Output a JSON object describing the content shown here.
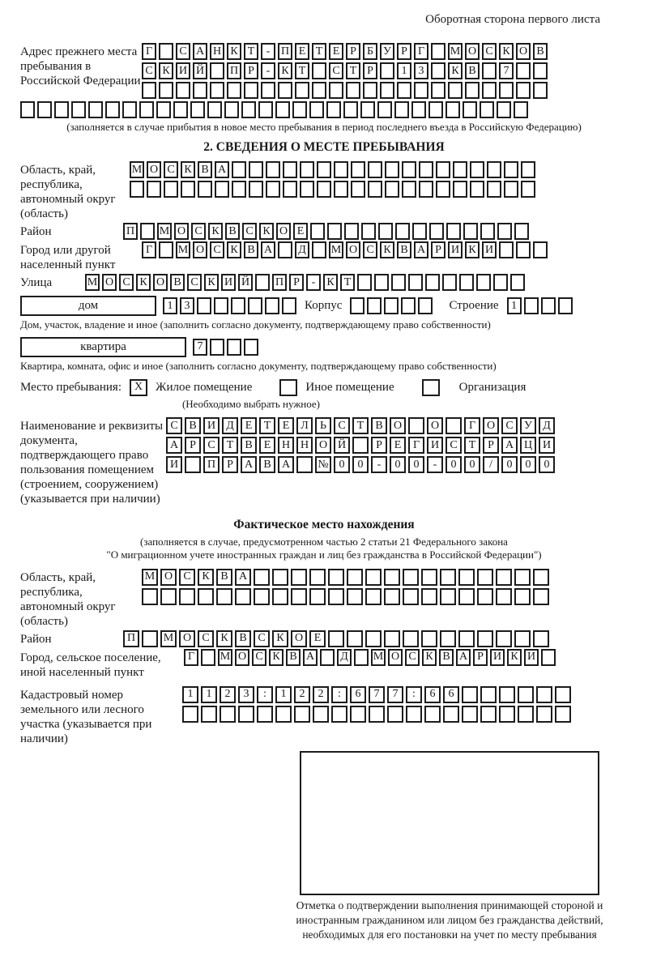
{
  "header_note": "Оборотная сторона первого листа",
  "prev_address": {
    "label": "Адрес прежнего места пребывания в Российской Федерации",
    "row1": {
      "text": "Г САНКТ-ПЕТЕРБУРГ МОСКОВ",
      "len": 24
    },
    "row2": {
      "text": "СКИЙ ПР-КТ СТР 13 КВ 7",
      "len": 24
    },
    "row3": {
      "text": "",
      "len": 24
    },
    "row4": {
      "text": "",
      "len": 30
    },
    "caption": "(заполняется в случае прибытия в новое место пребывания в период последнего въезда в Российскую Федерацию)"
  },
  "section2": {
    "title": "2. СВЕДЕНИЯ О МЕСТЕ ПРЕБЫВАНИЯ",
    "oblast": {
      "label": "Область, край, республика, автономный округ (область)",
      "row1": {
        "text": "МОСКВА",
        "len": 24
      },
      "row2": {
        "text": "",
        "len": 24
      }
    },
    "raion": {
      "label": "Район",
      "row": {
        "text": "П МОСКВСКОЕ",
        "len": 24
      }
    },
    "gorod": {
      "label": "Город или другой населенный пункт",
      "row": {
        "text": "Г МОСКВА Д МОСКВАРИКИ",
        "len": 24
      }
    },
    "ulitsa": {
      "label": "Улица",
      "row": {
        "text": "МОСКОВСКИЙ ПР-КТ",
        "len": 26
      }
    },
    "dom": {
      "box_label": "дом",
      "cells": {
        "text": "13",
        "len": 8
      },
      "korpus_label": "Корпус",
      "korpus_cells": {
        "text": "",
        "len": 5
      },
      "stroenie_label": "Строение",
      "stroenie_cells": {
        "text": "1",
        "len": 4
      },
      "caption": "Дом, участок, владение и иное (заполнить согласно документу, подтверждающему право собственности)"
    },
    "kvartira": {
      "box_label": "квартира",
      "cells": {
        "text": "7",
        "len": 4
      },
      "caption": "Квартира, комната, офис и иное (заполнить согласно документу, подтверждающему право собственности)"
    },
    "mesto": {
      "label": "Место пребывания:",
      "opt1_mark": "X",
      "opt1": "Жилое помещение",
      "opt2_mark": "",
      "opt2": "Иное помещение",
      "opt3_mark": "",
      "opt3": "Организация",
      "caption": "(Необходимо выбрать нужное)"
    },
    "doc": {
      "label": "Наименование и реквизиты документа, подтверждающего право пользования помещением (строением, сооружением) (указывается при наличии)",
      "row1": {
        "text": "СВИДЕТЕЛЬСТВО О ГОСУД",
        "len": 21
      },
      "row2": {
        "text": "АРСТВЕННОЙ РЕГИСТРАЦИ",
        "len": 21
      },
      "row3": {
        "text": "И ПРАВА №00-00-00/000",
        "len": 21
      }
    }
  },
  "factual": {
    "title": "Фактическое место нахождения",
    "caption1": "(заполняется в случае, предусмотренном частью 2 статьи 21 Федерального закона",
    "caption2": "\"О миграционном учете иностранных граждан и лиц без гражданства в Российской Федерации\")",
    "oblast": {
      "label": "Область, край, республика, автономный округ (область)",
      "row1": {
        "text": "МОСКВА",
        "len": 22
      },
      "row2": {
        "text": "",
        "len": 22
      }
    },
    "raion": {
      "label": "Район",
      "row": {
        "text": "П МОСКВСКОЕ",
        "len": 23
      }
    },
    "gorod": {
      "label": "Город, сельское поселение, иной населенный пункт",
      "row": {
        "text": "Г МОСКВА Д МОСКВАРИКИ",
        "len": 22
      }
    },
    "kadastr": {
      "label": "Кадастровый номер земельного или лесного участка (указывается при наличии)",
      "row1": {
        "text": "1123:122:677:66",
        "len": 21
      },
      "row2": {
        "text": "",
        "len": 21
      }
    },
    "confirm_caption": "Отметка о подтверждении выполнения принимающей стороной и иностранным гражданином или лицом без гражданства действий, необходимых для его постановки на учет по месту пребывания"
  }
}
